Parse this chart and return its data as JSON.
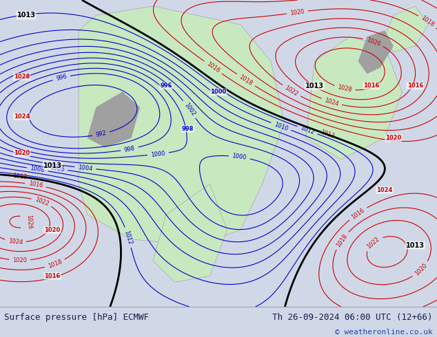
{
  "title_left": "Surface pressure [hPa] ECMWF",
  "title_right": "Th 26-09-2024 06:00 UTC (12+66)",
  "copyright": "© weatheronline.co.uk",
  "bg_color": "#d0d8e8",
  "land_color": "#c8e8c0",
  "footer_bg": "#ffffff",
  "footer_text_color": "#1a1a4a",
  "blue_contour_color": "#0000cc",
  "red_contour_color": "#cc0000",
  "black_contour_color": "#000000",
  "title_fontsize": 9,
  "copyright_fontsize": 8,
  "figsize": [
    6.34,
    4.9
  ],
  "dpi": 100
}
